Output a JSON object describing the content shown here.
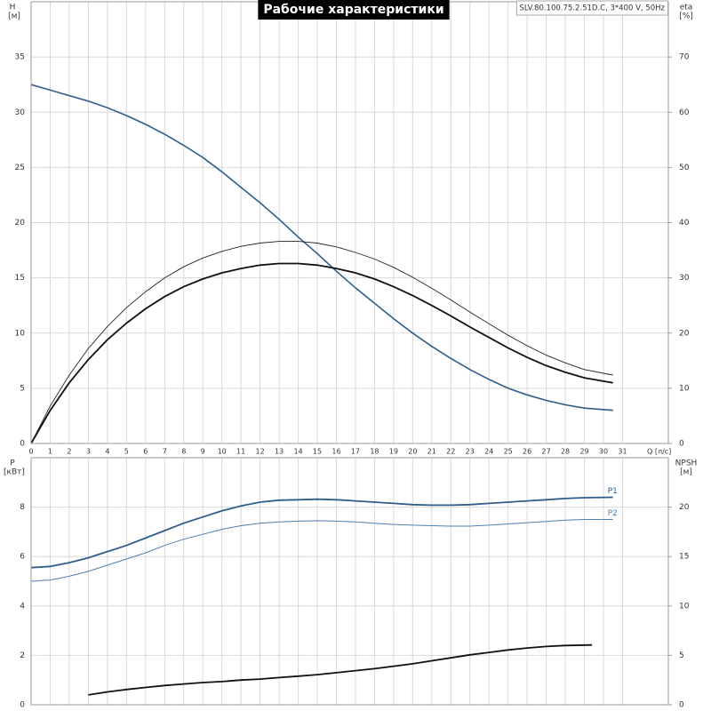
{
  "chart_data": [
    {
      "type": "line",
      "title": "Рабочие характеристики",
      "subtitle": "SLV.80.100.75.2.51D.C, 3*400 V, 50Hz",
      "ylabel": "H",
      "yunit": "[м]",
      "y2label": "eta",
      "y2unit": "[%]",
      "xlabel": "Q [л/с]",
      "xlim": [
        0,
        33.4
      ],
      "xticks": [
        0,
        1,
        2,
        3,
        4,
        5,
        6,
        7,
        8,
        9,
        10,
        11,
        12,
        13,
        14,
        15,
        16,
        17,
        18,
        19,
        20,
        21,
        22,
        23,
        24,
        25,
        26,
        27,
        28,
        29,
        30,
        31
      ],
      "ylim": [
        0,
        40
      ],
      "yticks": [
        0,
        5,
        10,
        15,
        20,
        25,
        30,
        35
      ],
      "y2lim": [
        0,
        80
      ],
      "y2ticks": [
        0,
        10,
        20,
        30,
        40,
        50,
        60,
        70
      ],
      "grid": true,
      "x": [
        0,
        1,
        2,
        3,
        4,
        5,
        6,
        7,
        8,
        9,
        10,
        11,
        12,
        13,
        14,
        15,
        16,
        17,
        18,
        19,
        20,
        21,
        22,
        23,
        24,
        25,
        26,
        27,
        28,
        29,
        30.5
      ],
      "series": [
        {
          "color": "#2f5d8c",
          "linewidth": 1.6,
          "values": [
            32.5,
            32.0,
            31.5,
            31.0,
            30.4,
            29.7,
            28.9,
            28.0,
            27.0,
            25.9,
            24.6,
            23.2,
            21.8,
            20.3,
            18.7,
            17.2,
            15.6,
            14.1,
            12.7,
            11.3,
            10.0,
            8.8,
            7.7,
            6.7,
            5.8,
            5.0,
            4.4,
            3.9,
            3.5,
            3.2,
            3.0
          ]
        },
        {
          "color": "#222222",
          "linewidth": 0.9,
          "axis": "y2",
          "values": [
            0,
            6.8,
            12.4,
            17.2,
            21.2,
            24.6,
            27.5,
            30.0,
            32.0,
            33.6,
            34.8,
            35.7,
            36.3,
            36.6,
            36.6,
            36.3,
            35.6,
            34.6,
            33.4,
            31.9,
            30.1,
            28.1,
            26.0,
            23.8,
            21.7,
            19.6,
            17.7,
            16.0,
            14.6,
            13.4,
            12.4
          ]
        },
        {
          "color": "#111111",
          "linewidth": 1.8,
          "axis": "y2",
          "values": [
            0,
            6,
            11,
            15.2,
            18.8,
            21.8,
            24.4,
            26.6,
            28.4,
            29.8,
            30.9,
            31.7,
            32.3,
            32.6,
            32.6,
            32.3,
            31.7,
            30.9,
            29.8,
            28.4,
            26.8,
            25.0,
            23.1,
            21.1,
            19.2,
            17.3,
            15.6,
            14.1,
            12.9,
            11.9,
            11.0
          ]
        }
      ]
    },
    {
      "type": "line",
      "ylabel": "P",
      "yunit": "[кВт]",
      "y2label": "NPSH",
      "y2unit": "[м]",
      "ylim": [
        0,
        10
      ],
      "yticks": [
        0,
        2,
        4,
        6,
        8
      ],
      "y2lim": [
        0,
        25
      ],
      "y2ticks": [
        0,
        5,
        10,
        15,
        20
      ],
      "grid": true,
      "x": [
        0,
        1,
        2,
        3,
        4,
        5,
        6,
        7,
        8,
        9,
        10,
        11,
        12,
        13,
        14,
        15,
        16,
        17,
        18,
        19,
        20,
        21,
        22,
        23,
        24,
        25,
        26,
        27,
        28,
        29,
        30.5
      ],
      "series": [
        {
          "name": "P1",
          "color": "#2f5d8c",
          "linewidth": 1.8,
          "values": [
            5.55,
            5.6,
            5.75,
            5.95,
            6.2,
            6.45,
            6.75,
            7.05,
            7.35,
            7.6,
            7.85,
            8.05,
            8.2,
            8.28,
            8.3,
            8.32,
            8.3,
            8.25,
            8.2,
            8.15,
            8.1,
            8.08,
            8.08,
            8.1,
            8.15,
            8.2,
            8.25,
            8.3,
            8.35,
            8.38,
            8.4
          ]
        },
        {
          "name": "P2",
          "color": "#4f7fb0",
          "linewidth": 1.0,
          "values": [
            5.0,
            5.05,
            5.2,
            5.4,
            5.65,
            5.9,
            6.15,
            6.45,
            6.7,
            6.9,
            7.1,
            7.25,
            7.35,
            7.4,
            7.43,
            7.45,
            7.43,
            7.4,
            7.35,
            7.3,
            7.27,
            7.25,
            7.23,
            7.23,
            7.27,
            7.32,
            7.37,
            7.42,
            7.47,
            7.5,
            7.5
          ]
        },
        {
          "color": "#111111",
          "linewidth": 1.8,
          "axis": "y2",
          "x": [
            3,
            4,
            5,
            6,
            7,
            8,
            9,
            10,
            11,
            12,
            13,
            14,
            15,
            16,
            17,
            18,
            19,
            20,
            21,
            22,
            23,
            24,
            25,
            26,
            27,
            28,
            29.4
          ],
          "values": [
            1.0,
            1.3,
            1.55,
            1.75,
            1.95,
            2.1,
            2.25,
            2.35,
            2.5,
            2.6,
            2.75,
            2.9,
            3.05,
            3.25,
            3.45,
            3.65,
            3.9,
            4.15,
            4.45,
            4.75,
            5.05,
            5.3,
            5.55,
            5.75,
            5.9,
            6.0,
            6.05
          ]
        }
      ]
    }
  ]
}
